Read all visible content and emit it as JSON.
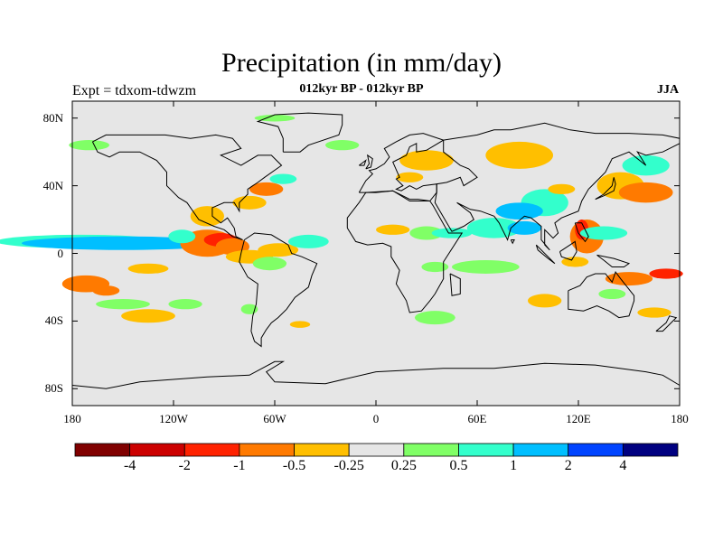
{
  "title": "Precipitation (in mm/day)",
  "subtitle": "012kyr BP - 012kyr BP",
  "left_label": "Expt = tdxom-tdwzm",
  "season": "JJA",
  "chart_data": {
    "type": "heatmap",
    "title": "Precipitation (in mm/day)",
    "subtitle": "012kyr BP - 012kyr BP",
    "xlim": [
      -180,
      180
    ],
    "ylim": [
      -90,
      90
    ],
    "x_ticks": [
      {
        "value": -180,
        "label": "180"
      },
      {
        "value": -120,
        "label": "120W"
      },
      {
        "value": -60,
        "label": "60W"
      },
      {
        "value": 0,
        "label": "0"
      },
      {
        "value": 60,
        "label": "60E"
      },
      {
        "value": 120,
        "label": "120E"
      },
      {
        "value": 180,
        "label": "180"
      }
    ],
    "y_ticks": [
      {
        "value": 80,
        "label": "80N"
      },
      {
        "value": 40,
        "label": "40N"
      },
      {
        "value": 0,
        "label": "0"
      },
      {
        "value": -40,
        "label": "40S"
      },
      {
        "value": -80,
        "label": "80S"
      }
    ],
    "colorbar": {
      "colors": [
        "#800000",
        "#cc0000",
        "#ff2200",
        "#ff7a00",
        "#ffbf00",
        "#e6e6e6",
        "#80ff66",
        "#33ffcc",
        "#00bfff",
        "#0044ff",
        "#000080"
      ],
      "boundaries": [
        {
          "value": -4,
          "label": "-4"
        },
        {
          "value": -2,
          "label": "-2"
        },
        {
          "value": -1,
          "label": "-1"
        },
        {
          "value": -0.5,
          "label": "-0.5"
        },
        {
          "value": -0.25,
          "label": "-0.25"
        },
        {
          "value": 0.25,
          "label": "0.25"
        },
        {
          "value": 0.5,
          "label": "0.5"
        },
        {
          "value": 1,
          "label": "1"
        },
        {
          "value": 2,
          "label": "2"
        },
        {
          "value": 4,
          "label": "4"
        }
      ]
    },
    "background_color": "#e6e6e6",
    "anomaly_regions": [
      {
        "lon": -175,
        "lat": 7,
        "w": 50,
        "h": 4,
        "value": 0.7
      },
      {
        "lon": -150,
        "lat": 6,
        "w": 60,
        "h": 4,
        "value": 1.2
      },
      {
        "lon": -140,
        "lat": 6,
        "w": 30,
        "h": 3,
        "value": 1.6
      },
      {
        "lon": -100,
        "lat": 6,
        "w": 16,
        "h": 8,
        "value": -0.7
      },
      {
        "lon": -92,
        "lat": 8,
        "w": 10,
        "h": 4,
        "value": -1.5
      },
      {
        "lon": -115,
        "lat": 10,
        "w": 8,
        "h": 4,
        "value": 0.7
      },
      {
        "lon": -85,
        "lat": 4,
        "w": 10,
        "h": 5,
        "value": -0.7
      },
      {
        "lon": -75,
        "lat": -2,
        "w": 14,
        "h": 4,
        "value": -0.3
      },
      {
        "lon": -58,
        "lat": 2,
        "w": 12,
        "h": 4,
        "value": -0.3
      },
      {
        "lon": -40,
        "lat": 7,
        "w": 12,
        "h": 4,
        "value": 0.7
      },
      {
        "lon": -63,
        "lat": -6,
        "w": 10,
        "h": 4,
        "value": 0.4
      },
      {
        "lon": -100,
        "lat": 22,
        "w": 10,
        "h": 6,
        "value": -0.3
      },
      {
        "lon": -75,
        "lat": 30,
        "w": 10,
        "h": 4,
        "value": -0.3
      },
      {
        "lon": -65,
        "lat": 38,
        "w": 10,
        "h": 4,
        "value": -0.7
      },
      {
        "lon": -55,
        "lat": 44,
        "w": 8,
        "h": 3,
        "value": 0.7
      },
      {
        "lon": -135,
        "lat": -9,
        "w": 12,
        "h": 3,
        "value": -0.3
      },
      {
        "lon": -172,
        "lat": -18,
        "w": 14,
        "h": 5,
        "value": -0.7
      },
      {
        "lon": -160,
        "lat": -22,
        "w": 8,
        "h": 3,
        "value": -0.7
      },
      {
        "lon": -150,
        "lat": -30,
        "w": 16,
        "h": 3,
        "value": 0.4
      },
      {
        "lon": -135,
        "lat": -37,
        "w": 16,
        "h": 4,
        "value": -0.3
      },
      {
        "lon": -113,
        "lat": -30,
        "w": 10,
        "h": 3,
        "value": 0.4
      },
      {
        "lon": -75,
        "lat": -33,
        "w": 5,
        "h": 3,
        "value": 0.4
      },
      {
        "lon": -45,
        "lat": -42,
        "w": 6,
        "h": 2,
        "value": -0.3
      },
      {
        "lon": -170,
        "lat": 64,
        "w": 12,
        "h": 3,
        "value": 0.4
      },
      {
        "lon": -60,
        "lat": 80,
        "w": 12,
        "h": 2,
        "value": 0.4
      },
      {
        "lon": -20,
        "lat": 64,
        "w": 10,
        "h": 3,
        "value": 0.4
      },
      {
        "lon": 10,
        "lat": 14,
        "w": 10,
        "h": 3,
        "value": -0.3
      },
      {
        "lon": 30,
        "lat": 12,
        "w": 10,
        "h": 4,
        "value": 0.4
      },
      {
        "lon": 45,
        "lat": 12,
        "w": 12,
        "h": 3,
        "value": 0.7
      },
      {
        "lon": 35,
        "lat": -8,
        "w": 8,
        "h": 3,
        "value": 0.4
      },
      {
        "lon": 35,
        "lat": -38,
        "w": 12,
        "h": 4,
        "value": 0.4
      },
      {
        "lon": 30,
        "lat": 55,
        "w": 16,
        "h": 6,
        "value": -0.3
      },
      {
        "lon": 20,
        "lat": 45,
        "w": 8,
        "h": 3,
        "value": -0.3
      },
      {
        "lon": 85,
        "lat": 58,
        "w": 20,
        "h": 8,
        "value": -0.3
      },
      {
        "lon": 100,
        "lat": 30,
        "w": 14,
        "h": 8,
        "value": 0.7
      },
      {
        "lon": 85,
        "lat": 25,
        "w": 14,
        "h": 5,
        "value": 1.2
      },
      {
        "lon": 70,
        "lat": 15,
        "w": 16,
        "h": 6,
        "value": 0.7
      },
      {
        "lon": 88,
        "lat": 15,
        "w": 10,
        "h": 4,
        "value": 1.5
      },
      {
        "lon": 65,
        "lat": -8,
        "w": 20,
        "h": 4,
        "value": 0.4
      },
      {
        "lon": 110,
        "lat": 38,
        "w": 8,
        "h": 3,
        "value": -0.3
      },
      {
        "lon": 125,
        "lat": 10,
        "w": 10,
        "h": 10,
        "value": -0.7
      },
      {
        "lon": 122,
        "lat": 14,
        "w": 4,
        "h": 6,
        "value": -1.6
      },
      {
        "lon": 135,
        "lat": 12,
        "w": 14,
        "h": 4,
        "value": 0.7
      },
      {
        "lon": 145,
        "lat": 40,
        "w": 14,
        "h": 8,
        "value": -0.3
      },
      {
        "lon": 160,
        "lat": 36,
        "w": 16,
        "h": 6,
        "value": -0.7
      },
      {
        "lon": 160,
        "lat": 52,
        "w": 14,
        "h": 6,
        "value": 0.7
      },
      {
        "lon": 150,
        "lat": -15,
        "w": 14,
        "h": 4,
        "value": -0.7
      },
      {
        "lon": 172,
        "lat": -12,
        "w": 10,
        "h": 3,
        "value": -1.2
      },
      {
        "lon": 100,
        "lat": -28,
        "w": 10,
        "h": 4,
        "value": -0.3
      },
      {
        "lon": 118,
        "lat": -5,
        "w": 8,
        "h": 3,
        "value": -0.3
      },
      {
        "lon": 165,
        "lat": -35,
        "w": 10,
        "h": 3,
        "value": -0.3
      },
      {
        "lon": 140,
        "lat": -24,
        "w": 8,
        "h": 3,
        "value": 0.4
      }
    ]
  }
}
